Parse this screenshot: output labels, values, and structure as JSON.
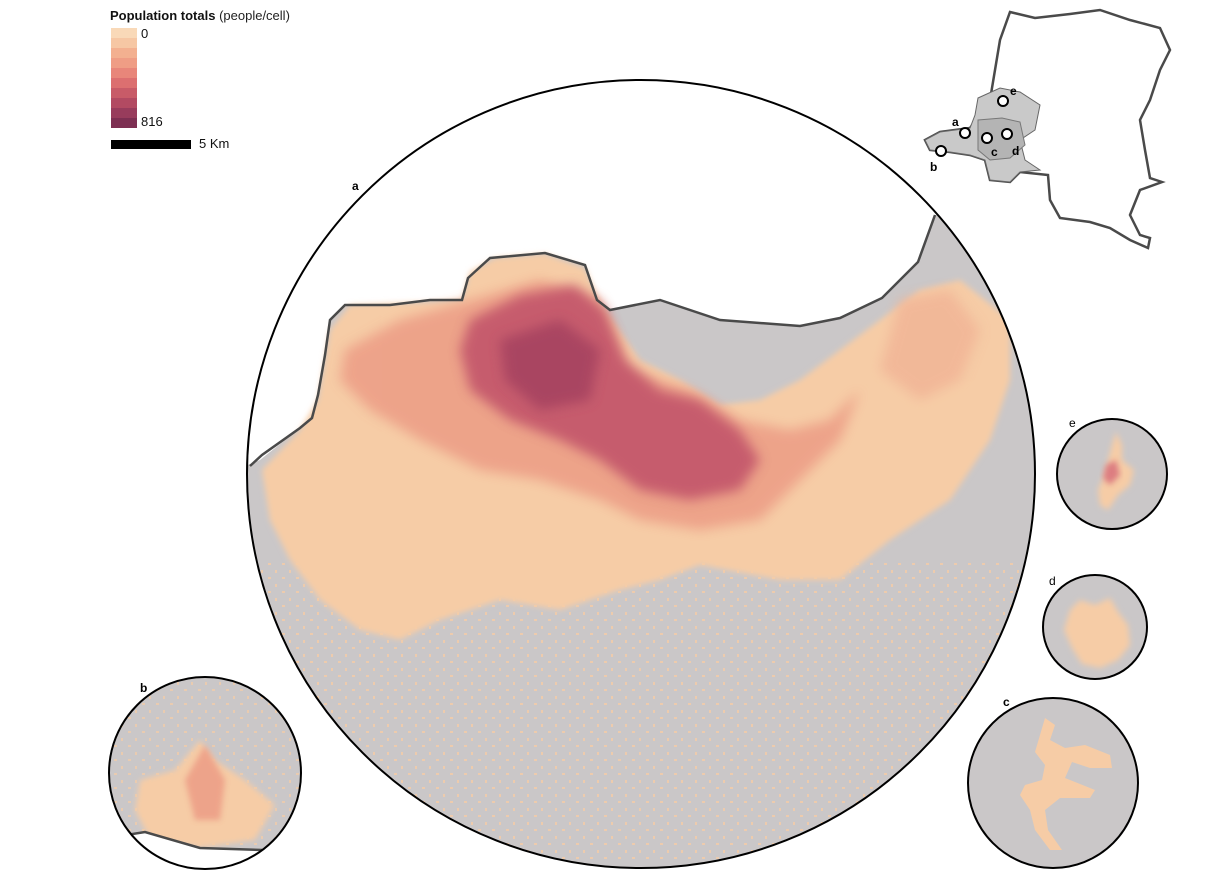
{
  "legend": {
    "title": "Population totals",
    "unit": "(people/cell)",
    "min_label": "0",
    "max_label": "816",
    "ramp_colors": [
      "#f9d9b8",
      "#f6c7a4",
      "#f3b090",
      "#ef9d85",
      "#e8867a",
      "#dc6f70",
      "#c85b68",
      "#b24a62",
      "#983c5c",
      "#7d2f52"
    ],
    "scale_label": "5 Km"
  },
  "colors": {
    "background_land": "#cac7c8",
    "low_density": "#f6cca6",
    "mid_density": "#ec9c85",
    "high_density": "#c2546a",
    "water": "#ffffff",
    "outline": "#4a4a4a"
  },
  "panels": {
    "a": {
      "label": "a"
    },
    "b": {
      "label": "b"
    },
    "c": {
      "label": "c"
    },
    "d": {
      "label": "d"
    },
    "e": {
      "label": "e"
    }
  },
  "inset_map": {
    "markers": [
      "a",
      "b",
      "c",
      "d",
      "e"
    ]
  }
}
